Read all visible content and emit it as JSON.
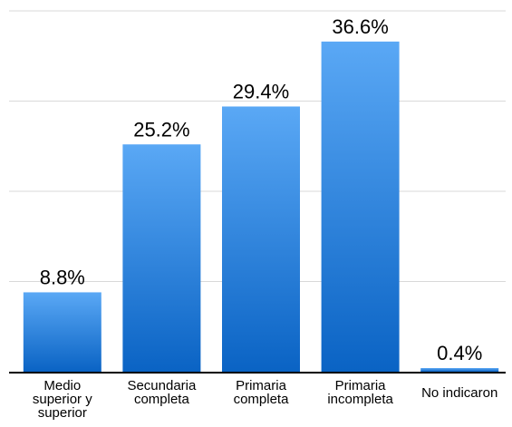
{
  "chart_data": {
    "type": "bar",
    "categories": [
      "Medio superior y superior",
      "Secundaria completa",
      "Primaria completa",
      "Primaria incompleta",
      "No indicaron"
    ],
    "category_label_lines": [
      [
        "Medio",
        "superior y",
        "superior"
      ],
      [
        "Secundaria",
        "completa"
      ],
      [
        "Primaria",
        "completa"
      ],
      [
        "Primaria",
        "incompleta"
      ],
      [
        "No indicaron"
      ]
    ],
    "values": [
      8.8,
      25.2,
      29.4,
      36.6,
      0.4
    ],
    "data_labels": [
      "8.8%",
      "25.2%",
      "29.4%",
      "36.6%",
      "0.4%"
    ],
    "title": "",
    "xlabel": "",
    "ylabel": "",
    "ylim": [
      0,
      40
    ],
    "y_gridlines": [
      0,
      10,
      20,
      30,
      40
    ],
    "grid": true,
    "legend": "none",
    "colors": {
      "bar_top": "#5aa8f5",
      "bar_bottom": "#0a63c4",
      "grid": "#d9d9d9",
      "axis": "#000000"
    }
  }
}
